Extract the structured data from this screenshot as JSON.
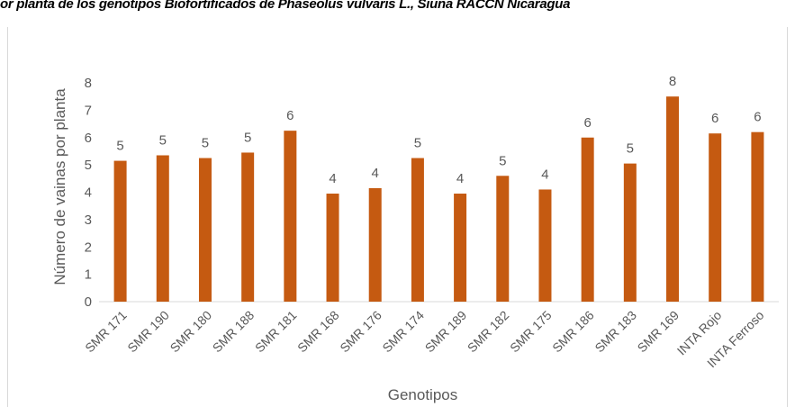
{
  "title": "or planta de los genotipos Biofortificados de Phaseolus vulvaris L., Siuna RACCN Nicaragua",
  "chart_data": {
    "type": "bar",
    "categories": [
      "SMR 171",
      "SMR 190",
      "SMR 180",
      "SMR 188",
      "SMR 181",
      "SMR 168",
      "SMR 176",
      "SMR 174",
      "SMR 189",
      "SMR 182",
      "SMR 175",
      "SMR 186",
      "SMR 183",
      "SMR 169",
      "INTA Rojo",
      "INTA Ferroso"
    ],
    "values": [
      5.15,
      5.35,
      5.25,
      5.45,
      6.25,
      3.95,
      4.15,
      5.25,
      3.95,
      4.6,
      4.1,
      6.0,
      5.05,
      7.5,
      6.15,
      6.2
    ],
    "data_labels": [
      "5",
      "5",
      "5",
      "5",
      "6",
      "4",
      "4",
      "5",
      "4",
      "5",
      "4",
      "6",
      "5",
      "8",
      "6",
      "6"
    ],
    "xlabel": "Genotipos",
    "ylabel": "Número de vainas por planta",
    "ylim": [
      0,
      8
    ],
    "yticks": [
      "0",
      "1",
      "2",
      "3",
      "4",
      "5",
      "6",
      "7",
      "8"
    ],
    "grid": false,
    "bar_color": "#c55a11"
  }
}
